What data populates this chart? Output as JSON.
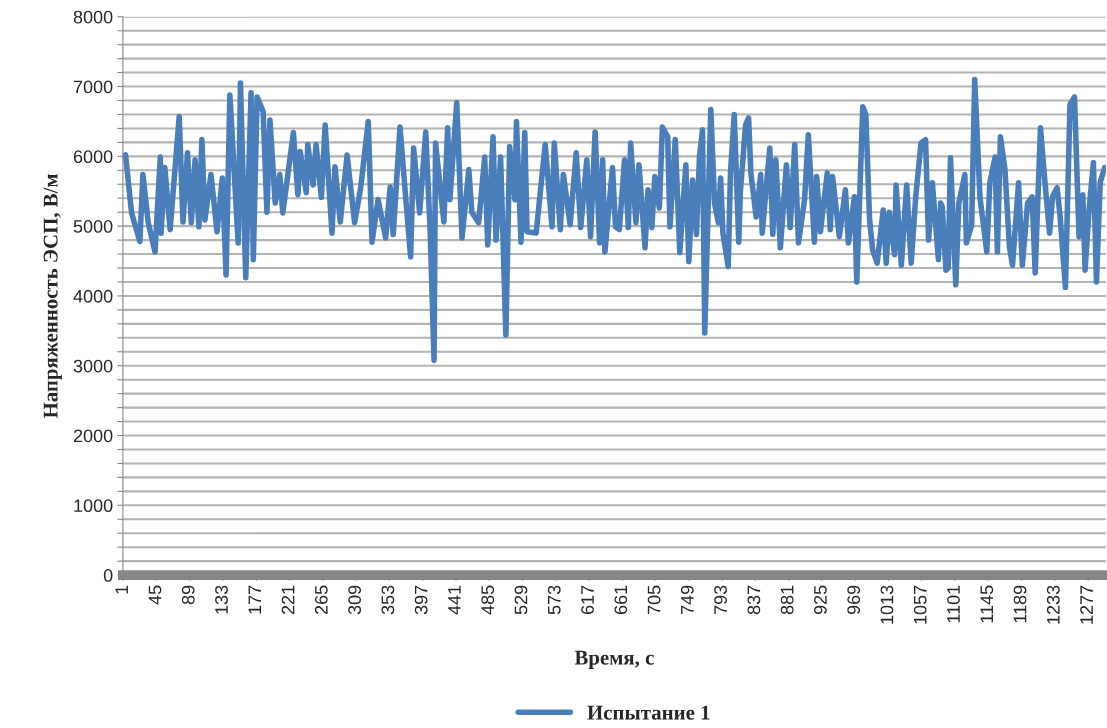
{
  "chart_data": {
    "type": "line",
    "xlabel": "Время, с",
    "ylabel": "Напряженность ЭСП, В/м",
    "xlim": [
      0.5,
      1300.5
    ],
    "xticks": [
      1,
      45,
      89,
      133,
      177,
      221,
      265,
      309,
      353,
      397,
      441,
      485,
      529,
      573,
      617,
      661,
      705,
      749,
      793,
      837,
      881,
      925,
      969,
      1013,
      1057,
      1101,
      1145,
      1189,
      1233,
      1277
    ],
    "ylim": [
      0,
      8000
    ],
    "yticks": [
      0,
      {
        "value": 200,
        "label": null
      },
      {
        "value": 400,
        "label": null
      },
      {
        "value": 600,
        "label": null
      },
      {
        "value": 800,
        "label": null
      },
      1000,
      {
        "value": 1200,
        "label": null
      },
      {
        "value": 1400,
        "label": null
      },
      {
        "value": 1600,
        "label": null
      },
      {
        "value": 1800,
        "label": null
      },
      2000,
      {
        "value": 2200,
        "label": null
      },
      {
        "value": 2400,
        "label": null
      },
      {
        "value": 2600,
        "label": null
      },
      {
        "value": 2800,
        "label": null
      },
      3000,
      {
        "value": 3200,
        "label": null
      },
      {
        "value": 3400,
        "label": null
      },
      {
        "value": 3600,
        "label": null
      },
      {
        "value": 3800,
        "label": null
      },
      4000,
      {
        "value": 4200,
        "label": null
      },
      {
        "value": 4400,
        "label": null
      },
      {
        "value": 4600,
        "label": null
      },
      {
        "value": 4800,
        "label": null
      },
      5000,
      {
        "value": 5200,
        "label": null
      },
      {
        "value": 5400,
        "label": null
      },
      {
        "value": 5600,
        "label": null
      },
      {
        "value": 5800,
        "label": null
      },
      6000,
      {
        "value": 6200,
        "label": null
      },
      {
        "value": 6400,
        "label": null
      },
      {
        "value": 6600,
        "label": null
      },
      {
        "value": 6800,
        "label": null
      },
      7000,
      {
        "value": 7200,
        "label": null
      },
      {
        "value": 7400,
        "label": null
      },
      {
        "value": 7600,
        "label": null
      },
      {
        "value": 7800,
        "label": null
      },
      8000
    ],
    "grid": "y",
    "legend": "bottom",
    "marker": "none",
    "line_style": "solid",
    "series": [
      {
        "name": "Испытание 1",
        "color": "#4a7ebb",
        "x": [
          1,
          4,
          12,
          23,
          27,
          34,
          43,
          50,
          51,
          56,
          63,
          75,
          80,
          86,
          91,
          96,
          101,
          105,
          109,
          117,
          125,
          132,
          137,
          142,
          153,
          156,
          163,
          170,
          173,
          178,
          186,
          191,
          195,
          202,
          208,
          212,
          226,
          232,
          235,
          243,
          245,
          252,
          256,
          263,
          268,
          277,
          281,
          288,
          297,
          307,
          315,
          325,
          330,
          338,
          348,
          354,
          358,
          367,
          374,
          381,
          385,
          393,
          401,
          407,
          412,
          414,
          425,
          430,
          433,
          442,
          449,
          458,
          462,
          471,
          479,
          483,
          490,
          494,
          500,
          507,
          512,
          519,
          521,
          527,
          532,
          535,
          547,
          559,
          568,
          571,
          579,
          583,
          592,
          600,
          606,
          614,
          619,
          625,
          631,
          635,
          638,
          648,
          652,
          657,
          664,
          669,
          672,
          679,
          683,
          691,
          695,
          700,
          704,
          710,
          714,
          721,
          724,
          731,
          737,
          745,
          749,
          754,
          759,
          763,
          767,
          770,
          778,
          783,
          788,
          791,
          794,
          801,
          804,
          809,
          815,
          817,
          824,
          828,
          831,
          838,
          844,
          846,
          856,
          860,
          864,
          870,
          878,
          883,
          889,
          894,
          902,
          907,
          915,
          918,
          923,
          932,
          936,
          939,
          948,
          956,
          960,
          968,
          971,
          979,
          983,
          988,
          992,
          998,
          1006,
          1010,
          1014,
          1021,
          1023,
          1030,
          1037,
          1043,
          1049,
          1056,
          1062,
          1066,
          1071,
          1079,
          1082,
          1084,
          1089,
          1092,
          1095,
          1102,
          1106,
          1114,
          1116,
          1123,
          1127,
          1134,
          1143,
          1147,
          1154,
          1157,
          1161,
          1167,
          1173,
          1177,
          1185,
          1190,
          1197,
          1203,
          1207,
          1214,
          1219,
          1226,
          1230,
          1236,
          1240,
          1247,
          1253,
          1259,
          1265,
          1270,
          1273,
          1278,
          1284,
          1288,
          1293,
          1299
        ],
        "values": [
          6000,
          6020,
          5190,
          4780,
          5740,
          5050,
          4630,
          5990,
          4900,
          5840,
          4950,
          6570,
          5060,
          6050,
          5050,
          5950,
          4990,
          6240,
          5090,
          5740,
          4920,
          5690,
          4300,
          6880,
          4760,
          7050,
          4260,
          6910,
          4520,
          6850,
          6640,
          5200,
          6520,
          5330,
          5740,
          5190,
          6340,
          5450,
          6070,
          5480,
          6170,
          5590,
          6170,
          5410,
          6450,
          4900,
          5850,
          5060,
          6020,
          5050,
          5550,
          6500,
          4770,
          5380,
          4830,
          5560,
          4880,
          6420,
          5480,
          4560,
          6120,
          5190,
          6350,
          4900,
          3080,
          6190,
          5060,
          6410,
          5380,
          6770,
          4830,
          5810,
          5200,
          5050,
          5990,
          4730,
          6280,
          4800,
          5990,
          3440,
          6140,
          5380,
          6500,
          4770,
          6340,
          4920,
          4900,
          6170,
          4990,
          6190,
          4950,
          5740,
          5020,
          6050,
          4980,
          5950,
          4850,
          6350,
          4760,
          5950,
          4630,
          5840,
          4990,
          4950,
          5950,
          4980,
          6190,
          5050,
          5880,
          4690,
          5520,
          4980,
          5710,
          5260,
          6420,
          6280,
          4990,
          6240,
          4620,
          5880,
          4490,
          5660,
          4880,
          5990,
          6380,
          3470,
          6670,
          5330,
          5050,
          5690,
          4900,
          4420,
          5760,
          6600,
          4770,
          5480,
          6450,
          6550,
          5760,
          5130,
          5740,
          4900,
          6120,
          4880,
          5950,
          4690,
          5880,
          4980,
          6170,
          4760,
          5380,
          6310,
          4770,
          5710,
          4920,
          5760,
          4950,
          5710,
          4850,
          5520,
          4760,
          5420,
          4200,
          6710,
          6600,
          5090,
          4660,
          4470,
          5230,
          4470,
          5200,
          4590,
          5590,
          4440,
          5590,
          4470,
          5420,
          6190,
          6240,
          4800,
          5620,
          4520,
          5330,
          5280,
          4370,
          4400,
          5980,
          4160,
          5330,
          5740,
          4760,
          5020,
          7100,
          5410,
          4630,
          5620,
          5990,
          4630,
          6280,
          5810,
          4700,
          4440,
          5620,
          4440,
          5330,
          5420,
          4330,
          6410,
          5740,
          4900,
          5420,
          5550,
          5130,
          4120,
          6740,
          6850,
          4850,
          5450,
          4370,
          5200,
          5910,
          4200,
          5630,
          5840
        ]
      }
    ]
  }
}
